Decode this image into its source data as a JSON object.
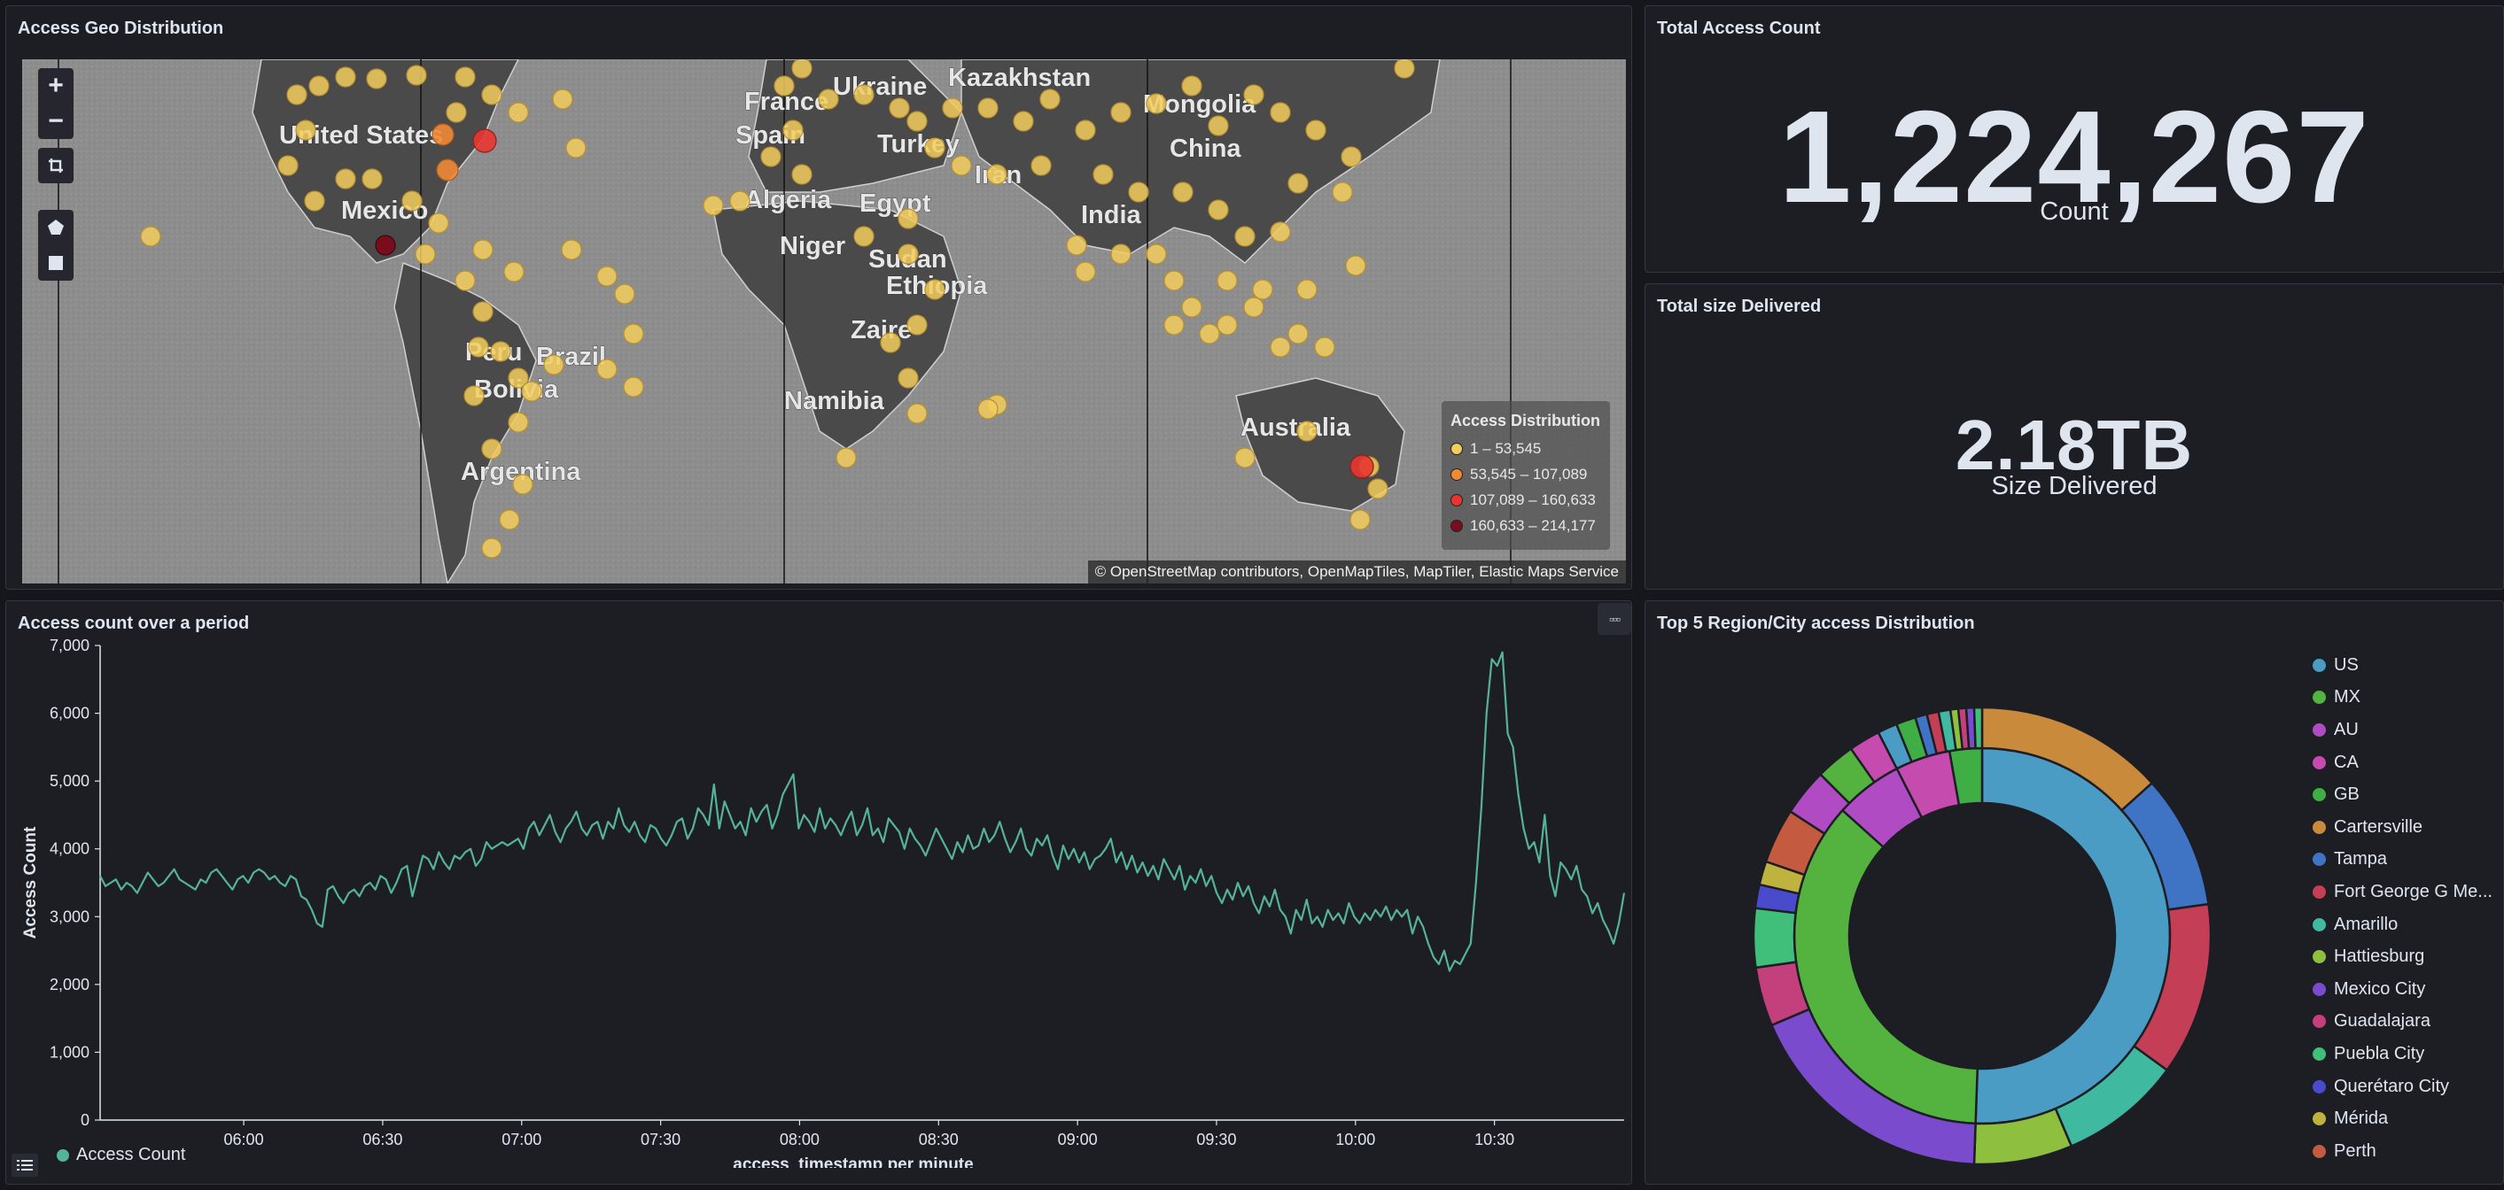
{
  "map_panel": {
    "title": "Access Geo Distribution",
    "controls": {
      "zoom_in": "+",
      "zoom_out": "−"
    },
    "country_labels": [
      "United States",
      "Mexico",
      "Peru",
      "Brazil",
      "Bolivia",
      "Argentina",
      "France",
      "Spain",
      "Ukraine",
      "Kazakhstan",
      "Mongolia",
      "China",
      "Turkey",
      "Iran",
      "India",
      "Algeria",
      "Egypt",
      "Niger",
      "Sudan",
      "Ethiopia",
      "Zaire",
      "Namibia",
      "Australia"
    ],
    "legend": {
      "title": "Access Distribution",
      "items": [
        {
          "label": "1 – 53,545",
          "color": "#f2cd5c"
        },
        {
          "label": "53,545 – 107,089",
          "color": "#f08a36"
        },
        {
          "label": "107,089 – 160,633",
          "color": "#e8362f"
        },
        {
          "label": "160,633 – 214,177",
          "color": "#7a0d1c"
        }
      ]
    },
    "attribution": "© OpenStreetMap contributors, OpenMapTiles, MapTiler, Elastic Maps Service"
  },
  "total_access": {
    "title": "Total Access Count",
    "value": "1,224,267",
    "label": "Count"
  },
  "total_size": {
    "title": "Total size Delivered",
    "value": "2.18TB",
    "label": "Size Delivered"
  },
  "line_panel": {
    "title": "Access count over a period",
    "options_icon": "more-options-icon",
    "legend_label": "Access Count",
    "legend_color": "#54b399"
  },
  "pie_panel": {
    "title": "Top 5 Region/City access Distribution",
    "legend": [
      {
        "label": "US",
        "color": "#4a9cc4"
      },
      {
        "label": "MX",
        "color": "#54b33f"
      },
      {
        "label": "AU",
        "color": "#b04bc4"
      },
      {
        "label": "CA",
        "color": "#c54bae"
      },
      {
        "label": "GB",
        "color": "#3fae44"
      },
      {
        "label": "Cartersville",
        "color": "#c98a3c"
      },
      {
        "label": "Tampa",
        "color": "#3f74c4"
      },
      {
        "label": "Fort George G Me...",
        "color": "#c43f55"
      },
      {
        "label": "Amarillo",
        "color": "#3fbaa0"
      },
      {
        "label": "Hattiesburg",
        "color": "#8fbf3f"
      },
      {
        "label": "Mexico City",
        "color": "#7a4bcc"
      },
      {
        "label": "Guadalajara",
        "color": "#c4407c"
      },
      {
        "label": "Puebla City",
        "color": "#3fbf7a"
      },
      {
        "label": "Querétaro City",
        "color": "#4a4bcc"
      },
      {
        "label": "Mérida",
        "color": "#bfb23f"
      },
      {
        "label": "Perth",
        "color": "#c45a3f"
      }
    ]
  },
  "chart_data": {
    "type": "line",
    "title": "Access count over a period",
    "xlabel": "access_timestamp per minute",
    "ylabel": "Access Count",
    "ylim": [
      0,
      7000
    ],
    "yticks": [
      "0",
      "1,000",
      "2,000",
      "3,000",
      "4,000",
      "5,000",
      "6,000",
      "7,000"
    ],
    "xticks": [
      "06:00",
      "06:30",
      "07:00",
      "07:30",
      "08:00",
      "08:30",
      "09:00",
      "09:30",
      "10:00",
      "10:30"
    ],
    "x_start": "05:29",
    "x_end": "10:58",
    "series": [
      {
        "name": "Access Count",
        "color": "#54b399",
        "values": [
          3600,
          3450,
          3500,
          3550,
          3400,
          3500,
          3450,
          3350,
          3500,
          3650,
          3550,
          3450,
          3500,
          3600,
          3700,
          3550,
          3500,
          3450,
          3400,
          3550,
          3500,
          3650,
          3700,
          3600,
          3500,
          3400,
          3550,
          3600,
          3500,
          3650,
          3700,
          3650,
          3550,
          3600,
          3500,
          3450,
          3600,
          3550,
          3300,
          3250,
          3100,
          2900,
          2850,
          3400,
          3450,
          3300,
          3200,
          3350,
          3400,
          3300,
          3450,
          3500,
          3400,
          3600,
          3550,
          3350,
          3500,
          3700,
          3750,
          3300,
          3600,
          3900,
          3850,
          3700,
          3950,
          3800,
          3700,
          3900,
          3850,
          3950,
          4000,
          3750,
          3850,
          4100,
          4000,
          4050,
          4100,
          4050,
          4100,
          4150,
          4000,
          4300,
          4400,
          4200,
          4350,
          4500,
          4250,
          4100,
          4300,
          4400,
          4550,
          4300,
          4200,
          4350,
          4400,
          4150,
          4400,
          4300,
          4600,
          4350,
          4250,
          4400,
          4200,
          4100,
          4350,
          4300,
          4150,
          4050,
          4200,
          4400,
          4450,
          4150,
          4300,
          4600,
          4500,
          4350,
          4950,
          4300,
          4700,
          4500,
          4300,
          4400,
          4200,
          4600,
          4400,
          4550,
          4650,
          4300,
          4500,
          4800,
          4950,
          5100,
          4300,
          4500,
          4400,
          4250,
          4600,
          4300,
          4450,
          4350,
          4200,
          4400,
          4550,
          4200,
          4350,
          4600,
          4200,
          4300,
          4100,
          4450,
          4350,
          4250,
          4000,
          4300,
          4150,
          4050,
          3900,
          4100,
          4300,
          4150,
          4000,
          3850,
          4100,
          3950,
          4200,
          4000,
          4050,
          4300,
          4100,
          4200,
          4400,
          4150,
          3950,
          4100,
          4300,
          4000,
          3900,
          4150,
          4050,
          4200,
          3900,
          3700,
          4050,
          3850,
          4000,
          3800,
          3950,
          3700,
          3850,
          3900,
          4000,
          4150,
          3800,
          3950,
          3700,
          3900,
          3650,
          3800,
          3600,
          3750,
          3550,
          3850,
          3700,
          3550,
          3750,
          3400,
          3600,
          3500,
          3700,
          3450,
          3600,
          3350,
          3200,
          3400,
          3250,
          3500,
          3300,
          3450,
          3200,
          3050,
          3300,
          3150,
          3400,
          3100,
          3000,
          2750,
          3100,
          2950,
          3250,
          2900,
          3000,
          2850,
          3100,
          2950,
          3050,
          2900,
          3200,
          3000,
          2900,
          3050,
          2950,
          3100,
          3000,
          3150,
          2950,
          3100,
          3000,
          3100,
          2750,
          3000,
          2850,
          2600,
          2400,
          2300,
          2500,
          2200,
          2350,
          2300,
          2450,
          2600,
          3500,
          4600,
          6000,
          6800,
          6700,
          6900,
          5700,
          5500,
          4800,
          4300,
          4000,
          4100,
          3800,
          4500,
          3600,
          3300,
          3800,
          3700,
          3550,
          3750,
          3400,
          3300,
          3050,
          3200,
          2950,
          2800,
          2600,
          2900,
          3350
        ]
      }
    ]
  }
}
